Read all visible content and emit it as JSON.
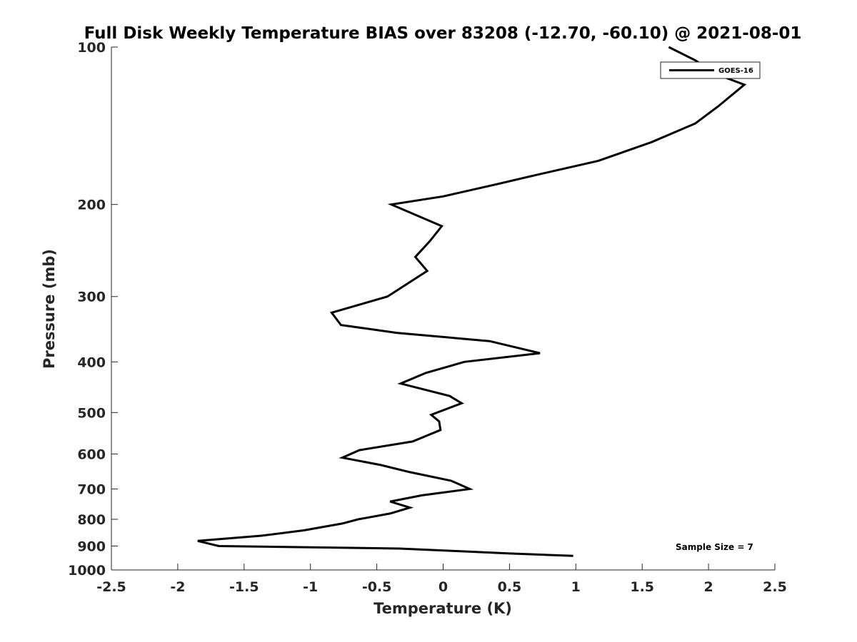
{
  "chart_data": {
    "type": "line",
    "title": "Full Disk Weekly Temperature BIAS over 83208 (-12.70, -60.10) @ 2021-08-01",
    "xlabel": "Temperature (K)",
    "ylabel": "Pressure (mb)",
    "xlim": [
      -2.5,
      2.5
    ],
    "ylim": [
      100,
      1000
    ],
    "y_scale": "log",
    "y_reversed": true,
    "grid": false,
    "legend_position": "top-right",
    "x_ticks": [
      -2.5,
      -2,
      -1.5,
      -1,
      -0.5,
      0,
      0.5,
      1,
      1.5,
      2,
      2.5
    ],
    "x_tick_labels": [
      "-2.5",
      "-2",
      "-1.5",
      "-1",
      "-0.5",
      "0",
      "0.5",
      "1",
      "1.5",
      "2",
      "2.5"
    ],
    "y_ticks": [
      100,
      200,
      300,
      400,
      500,
      600,
      700,
      800,
      900,
      1000
    ],
    "y_tick_labels": [
      "100",
      "200",
      "300",
      "400",
      "500",
      "600",
      "700",
      "800",
      "900",
      "1000"
    ],
    "series": [
      {
        "name": "GOES-16",
        "color": "#000000",
        "points": [
          [
            1.7,
            100
          ],
          [
            1.9,
            106
          ],
          [
            2.07,
            113
          ],
          [
            2.27,
            118
          ],
          [
            2.07,
            130
          ],
          [
            1.9,
            140
          ],
          [
            1.57,
            152
          ],
          [
            1.17,
            165
          ],
          [
            0.73,
            175
          ],
          [
            0.4,
            183
          ],
          [
            0,
            193
          ],
          [
            -0.39,
            200
          ],
          [
            -0.01,
            220
          ],
          [
            -0.1,
            235
          ],
          [
            -0.21,
            252
          ],
          [
            -0.12,
            268
          ],
          [
            -0.42,
            300
          ],
          [
            -0.84,
            322
          ],
          [
            -0.77,
            340
          ],
          [
            -0.35,
            352
          ],
          [
            0.35,
            365
          ],
          [
            0.73,
            385
          ],
          [
            0.16,
            400
          ],
          [
            -0.13,
            420
          ],
          [
            -0.32,
            440
          ],
          [
            0.05,
            465
          ],
          [
            0.14,
            480
          ],
          [
            -0.09,
            505
          ],
          [
            -0.03,
            520
          ],
          [
            -0.02,
            540
          ],
          [
            -0.23,
            568
          ],
          [
            -0.63,
            590
          ],
          [
            -0.76,
            610
          ],
          [
            -0.47,
            630
          ],
          [
            -0.25,
            650
          ],
          [
            0.06,
            675
          ],
          [
            0.2,
            700
          ],
          [
            -0.16,
            720
          ],
          [
            -0.4,
            740
          ],
          [
            -0.25,
            760
          ],
          [
            -0.4,
            780
          ],
          [
            -0.64,
            800
          ],
          [
            -0.76,
            815
          ],
          [
            -1.05,
            840
          ],
          [
            -1.37,
            860
          ],
          [
            -1.85,
            880
          ],
          [
            -1.69,
            900
          ],
          [
            -0.33,
            910
          ],
          [
            0.1,
            920
          ],
          [
            0.5,
            930
          ],
          [
            0.98,
            940
          ]
        ]
      }
    ],
    "annotation": "Sample Size = 7"
  }
}
